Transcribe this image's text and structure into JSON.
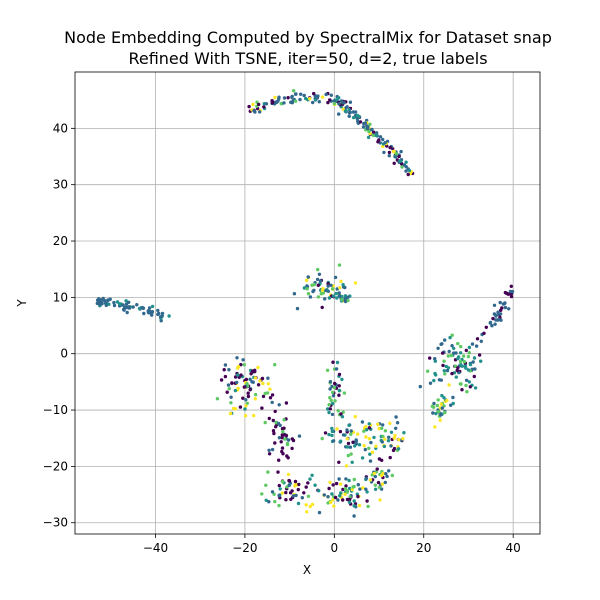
{
  "chart_data": {
    "type": "scatter",
    "title": [
      "Node Embedding Computed by SpectralMix for Dataset snap",
      "Refined With TSNE, iter=50, d=2, true labels"
    ],
    "xlabel": "X",
    "ylabel": "Y",
    "xlim": [
      -58,
      46
    ],
    "ylim": [
      -32,
      50
    ],
    "xticks": [
      -40,
      -20,
      0,
      20,
      40
    ],
    "yticks": [
      -30,
      -20,
      -10,
      0,
      10,
      20,
      30,
      40
    ],
    "xtick_labels": [
      "−40",
      "−20",
      "0",
      "20",
      "40"
    ],
    "ytick_labels": [
      "−30",
      "−20",
      "−10",
      "0",
      "10",
      "20",
      "30",
      "40"
    ],
    "grid": true,
    "colormap": [
      "#440154",
      "#31688e",
      "#21918c",
      "#5ec962",
      "#fde725"
    ],
    "clusters": [
      {
        "cx": -5,
        "cy": 44,
        "shape": "arc",
        "pts": [
          [
            -19,
            43
          ],
          [
            -15,
            44.5
          ],
          [
            -10,
            45.3
          ],
          [
            -5,
            45.5
          ],
          [
            0,
            45
          ],
          [
            3,
            43.5
          ],
          [
            6,
            41.5
          ],
          [
            9,
            39
          ],
          [
            12,
            36.5
          ],
          [
            15,
            34
          ],
          [
            18,
            31
          ]
        ],
        "n": 190,
        "spread": 0.5,
        "colors": [
          1,
          1,
          1,
          0,
          1,
          3,
          2,
          1,
          0,
          1,
          4
        ]
      },
      {
        "shape": "arc",
        "pts": [
          [
            -53,
            9.2
          ],
          [
            -49,
            8.8
          ],
          [
            -45,
            8.0
          ],
          [
            -41,
            7.4
          ],
          [
            -37,
            6.5
          ]
        ],
        "n": 75,
        "spread": 0.45,
        "colors": [
          1,
          1,
          1,
          1,
          2
        ]
      },
      {
        "shape": "blob",
        "cx": -2,
        "cy": 11.5,
        "rx": 5,
        "ry": 2.5,
        "n": 60,
        "colors": [
          0,
          1,
          1,
          1,
          2,
          3,
          4
        ]
      },
      {
        "shape": "arc",
        "pts": [
          [
            0,
            10.5
          ],
          [
            2,
            10
          ],
          [
            4,
            9.5
          ]
        ],
        "n": 15,
        "spread": 0.4,
        "colors": [
          2,
          3,
          1
        ]
      },
      {
        "shape": "blob",
        "cx": -20,
        "cy": -6,
        "rx": 5,
        "ry": 5,
        "n": 90,
        "colors": [
          0,
          0,
          0,
          0,
          1,
          2,
          3,
          4
        ]
      },
      {
        "shape": "blob",
        "cx": -12,
        "cy": -14,
        "rx": 3,
        "ry": 6,
        "n": 45,
        "colors": [
          0,
          0,
          0,
          1,
          3
        ]
      },
      {
        "shape": "blob",
        "cx": -10,
        "cy": -24,
        "rx": 5,
        "ry": 2.5,
        "n": 50,
        "colors": [
          0,
          0,
          1,
          2,
          3,
          4
        ]
      },
      {
        "shape": "blob",
        "cx": 0,
        "cy": -8,
        "rx": 2,
        "ry": 5,
        "n": 40,
        "colors": [
          0,
          0,
          1,
          2,
          3
        ]
      },
      {
        "shape": "blob",
        "cx": 4,
        "cy": -15,
        "rx": 5,
        "ry": 4,
        "n": 60,
        "colors": [
          0,
          1,
          2,
          2,
          3,
          4
        ]
      },
      {
        "shape": "blob",
        "cx": 12,
        "cy": -15,
        "rx": 4,
        "ry": 3,
        "n": 40,
        "colors": [
          0,
          1,
          2,
          3,
          4
        ]
      },
      {
        "shape": "blob",
        "cx": 2,
        "cy": -25,
        "rx": 6,
        "ry": 3,
        "n": 70,
        "colors": [
          0,
          1,
          2,
          3,
          4,
          4
        ]
      },
      {
        "shape": "blob",
        "cx": 10,
        "cy": -22,
        "rx": 3,
        "ry": 3,
        "n": 30,
        "colors": [
          0,
          1,
          3,
          4
        ]
      },
      {
        "shape": "blob",
        "cx": 27,
        "cy": -2,
        "rx": 5,
        "ry": 4,
        "n": 90,
        "colors": [
          1,
          1,
          2,
          2,
          3,
          0
        ]
      },
      {
        "shape": "blob",
        "cx": 24,
        "cy": -10,
        "rx": 2.5,
        "ry": 2.5,
        "n": 30,
        "colors": [
          1,
          2,
          3,
          4
        ]
      },
      {
        "shape": "arc",
        "pts": [
          [
            32,
            2
          ],
          [
            35,
            5
          ],
          [
            38,
            8
          ],
          [
            40,
            12
          ]
        ],
        "n": 40,
        "spread": 0.6,
        "colors": [
          1,
          1,
          1,
          0
        ]
      }
    ]
  }
}
